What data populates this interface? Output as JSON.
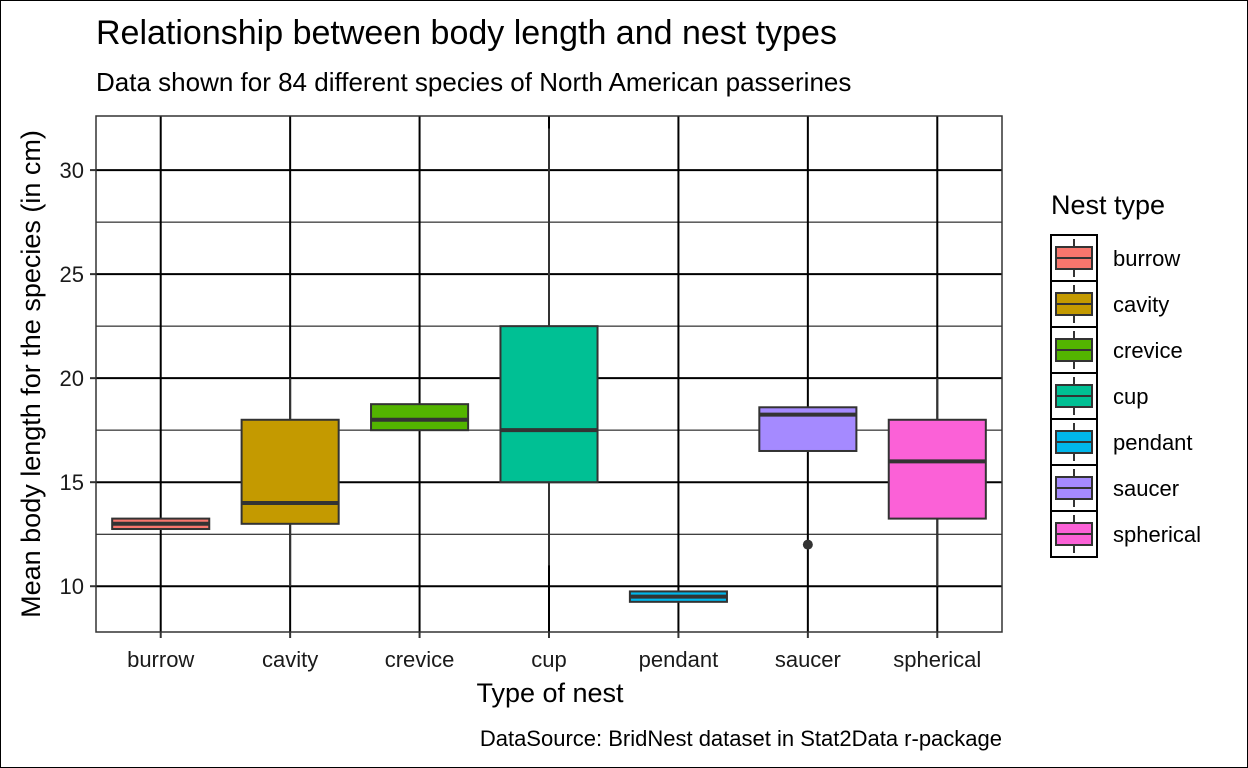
{
  "chart_data": {
    "type": "boxplot",
    "title": "Relationship between body length and nest types",
    "subtitle": "Data shown for 84 different species of North American passerines",
    "xlabel": "Type of nest",
    "ylabel": "Mean body length for the species (in cm)",
    "caption": "DataSource: BridNest dataset in Stat2Data r-package",
    "ylim": [
      7.8,
      32.6
    ],
    "yticks": [
      10,
      15,
      20,
      25,
      30
    ],
    "grid": true,
    "legend": {
      "title": "Nest type",
      "position": "right"
    },
    "categories": [
      "burrow",
      "cavity",
      "crevice",
      "cup",
      "pendant",
      "saucer",
      "spherical"
    ],
    "boxes": [
      {
        "name": "burrow",
        "color": "#F8766D",
        "min": 12.75,
        "q1": 12.75,
        "median": 13.0,
        "q3": 13.25,
        "max": 13.25,
        "outliers": []
      },
      {
        "name": "cavity",
        "color": "#C49A00",
        "min": 10.0,
        "q1": 13.0,
        "median": 14.0,
        "q3": 18.0,
        "max": 20.0,
        "outliers": []
      },
      {
        "name": "crevice",
        "color": "#53B400",
        "min": 17.5,
        "q1": 17.5,
        "median": 18.0,
        "q3": 18.75,
        "max": 18.75,
        "outliers": []
      },
      {
        "name": "cup",
        "color": "#00C094",
        "min": 11.0,
        "q1": 15.0,
        "median": 17.5,
        "q3": 22.5,
        "max": 32.0,
        "outliers": []
      },
      {
        "name": "pendant",
        "color": "#00B6EB",
        "min": 9.25,
        "q1": 9.25,
        "median": 9.5,
        "q3": 9.75,
        "max": 9.75,
        "outliers": []
      },
      {
        "name": "saucer",
        "color": "#A58AFF",
        "min": 16.5,
        "q1": 16.5,
        "median": 18.25,
        "q3": 18.6,
        "max": 18.6,
        "outliers": [
          12.0
        ]
      },
      {
        "name": "spherical",
        "color": "#FB61D7",
        "min": 10.0,
        "q1": 13.25,
        "median": 16.0,
        "q3": 18.0,
        "max": 20.0,
        "outliers": []
      }
    ]
  }
}
